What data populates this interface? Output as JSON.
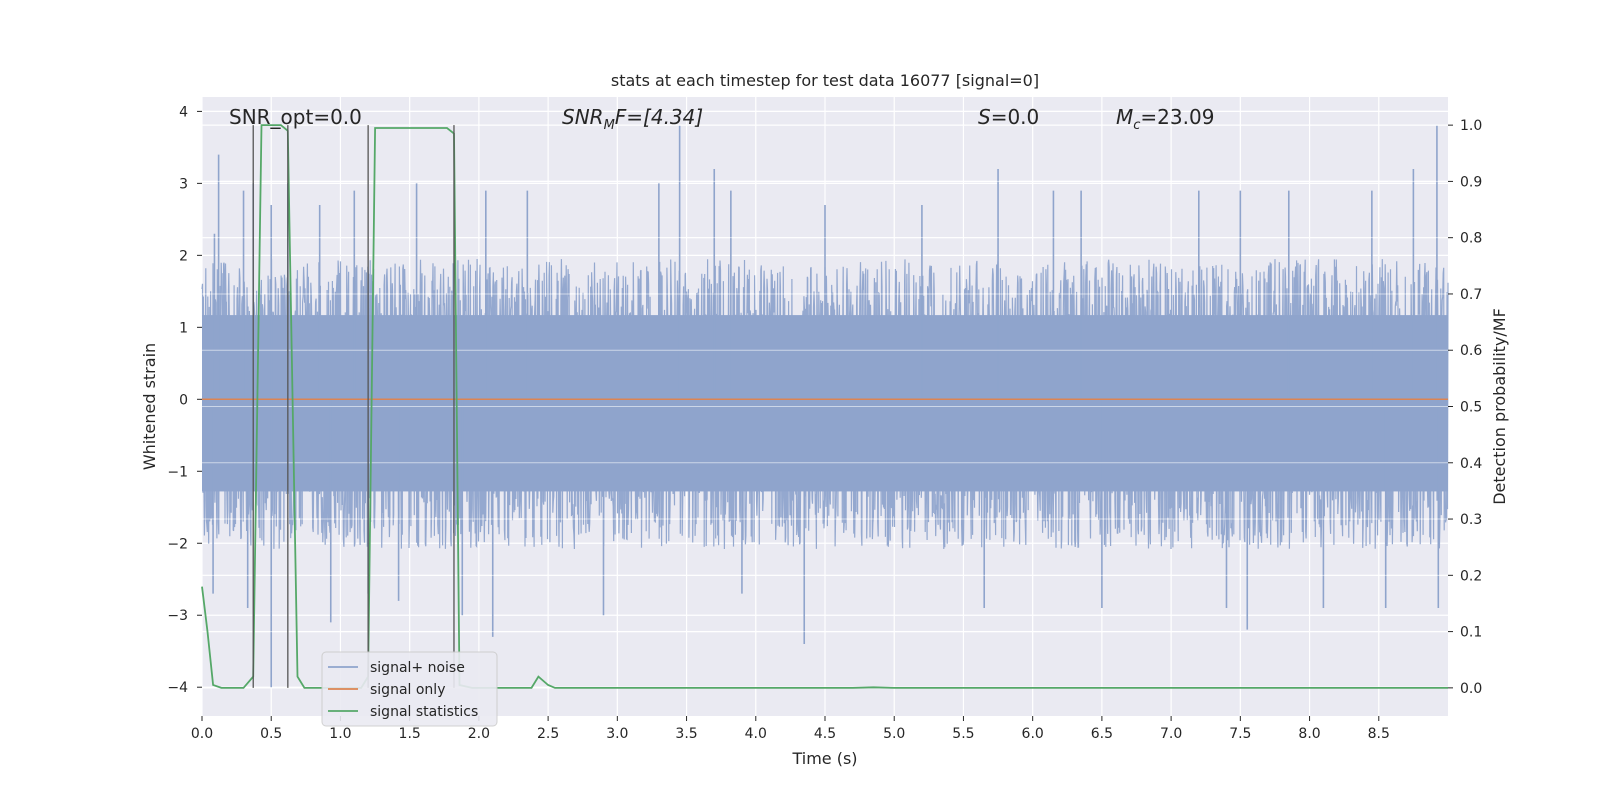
{
  "chart_data": {
    "type": "line",
    "title": "stats at each timestep for test data 16077 [signal=0]",
    "xlabel": "Time (s)",
    "ylabel_left": "Whitened strain",
    "ylabel_right": "Detection probability/MF",
    "xlim": [
      0.0,
      9.0
    ],
    "ylim_left": [
      -4.4,
      4.2
    ],
    "ylim_right": [
      -0.05,
      1.05
    ],
    "x_ticks": [
      "0.0",
      "0.5",
      "1.0",
      "1.5",
      "2.0",
      "2.5",
      "3.0",
      "3.5",
      "4.0",
      "4.5",
      "5.0",
      "5.5",
      "6.0",
      "6.5",
      "7.0",
      "7.5",
      "8.0",
      "8.5"
    ],
    "y_left_ticks": [
      "4",
      "3",
      "2",
      "1",
      "0",
      "−1",
      "−2",
      "−3",
      "−4"
    ],
    "y_right_ticks": [
      "1.0",
      "0.9",
      "0.8",
      "0.7",
      "0.6",
      "0.5",
      "0.4",
      "0.3",
      "0.2",
      "0.1",
      "0.0"
    ],
    "grid": true,
    "legend_position": "lower-left",
    "annotations": {
      "snr_opt": "SNR_opt=0.0",
      "snr_mf_prefix": "SNR",
      "snr_mf_sub": "M",
      "snr_mf_rest": "F=[4.34]",
      "s_label": "S",
      "s_rest": "=0.0",
      "mc_label": "M",
      "mc_sub": "c",
      "mc_rest": "=23.09"
    },
    "series": [
      {
        "name": "signal+ noise",
        "color": "#8fa4cc",
        "description_of_values": "noise band",
        "envelope_upper": 1.5,
        "envelope_lower": -1.6,
        "peaks": [
          [
            0.09,
            2.3
          ],
          [
            0.12,
            3.4
          ],
          [
            0.3,
            2.9
          ],
          [
            0.37,
            3.0
          ],
          [
            0.5,
            2.7
          ],
          [
            0.62,
            3.0
          ],
          [
            0.85,
            2.7
          ],
          [
            1.1,
            2.9
          ],
          [
            1.55,
            3.0
          ],
          [
            2.05,
            2.9
          ],
          [
            2.35,
            2.9
          ],
          [
            3.3,
            3.0
          ],
          [
            3.45,
            3.8
          ],
          [
            3.7,
            3.2
          ],
          [
            3.82,
            2.9
          ],
          [
            4.5,
            2.7
          ],
          [
            5.2,
            2.7
          ],
          [
            5.75,
            3.2
          ],
          [
            6.15,
            2.9
          ],
          [
            6.35,
            2.9
          ],
          [
            7.2,
            2.9
          ],
          [
            7.5,
            2.9
          ],
          [
            7.85,
            2.9
          ],
          [
            8.45,
            2.9
          ],
          [
            8.75,
            3.2
          ],
          [
            8.92,
            3.8
          ]
        ],
        "troughs": [
          [
            0.08,
            -2.7
          ],
          [
            0.33,
            -2.9
          ],
          [
            0.5,
            -4.0
          ],
          [
            0.93,
            -3.1
          ],
          [
            1.2,
            -2.7
          ],
          [
            1.42,
            -2.8
          ],
          [
            1.88,
            -3.0
          ],
          [
            2.1,
            -3.3
          ],
          [
            2.9,
            -3.0
          ],
          [
            3.9,
            -2.7
          ],
          [
            4.35,
            -3.4
          ],
          [
            5.65,
            -2.9
          ],
          [
            6.5,
            -2.9
          ],
          [
            7.4,
            -2.9
          ],
          [
            7.55,
            -3.2
          ],
          [
            8.1,
            -2.9
          ],
          [
            8.55,
            -2.9
          ],
          [
            8.93,
            -2.9
          ]
        ]
      },
      {
        "name": "signal only",
        "color": "#dd8452",
        "x": [
          0.0,
          9.0
        ],
        "y": [
          0.0,
          0.0
        ]
      },
      {
        "name": "signal statistics",
        "color": "#55a868",
        "x": [
          0.0,
          0.04,
          0.08,
          0.14,
          0.3,
          0.37,
          0.43,
          0.57,
          0.62,
          0.69,
          0.74,
          0.79,
          1.15,
          1.2,
          1.25,
          1.77,
          1.82,
          1.86,
          1.95,
          2.38,
          2.43,
          2.5,
          2.55,
          4.7,
          4.85,
          5.0,
          9.0
        ],
        "y": [
          0.18,
          0.1,
          0.005,
          0.0,
          0.0,
          0.02,
          1.0,
          1.0,
          0.99,
          0.02,
          0.0,
          0.0,
          0.0,
          0.02,
          0.995,
          0.995,
          0.985,
          0.005,
          0.0,
          0.0,
          0.02,
          0.005,
          0.0,
          0.0,
          0.001,
          0.0,
          0.0
        ]
      }
    ],
    "vertical_markers": [
      0.37,
      0.62,
      1.2,
      1.82
    ]
  }
}
